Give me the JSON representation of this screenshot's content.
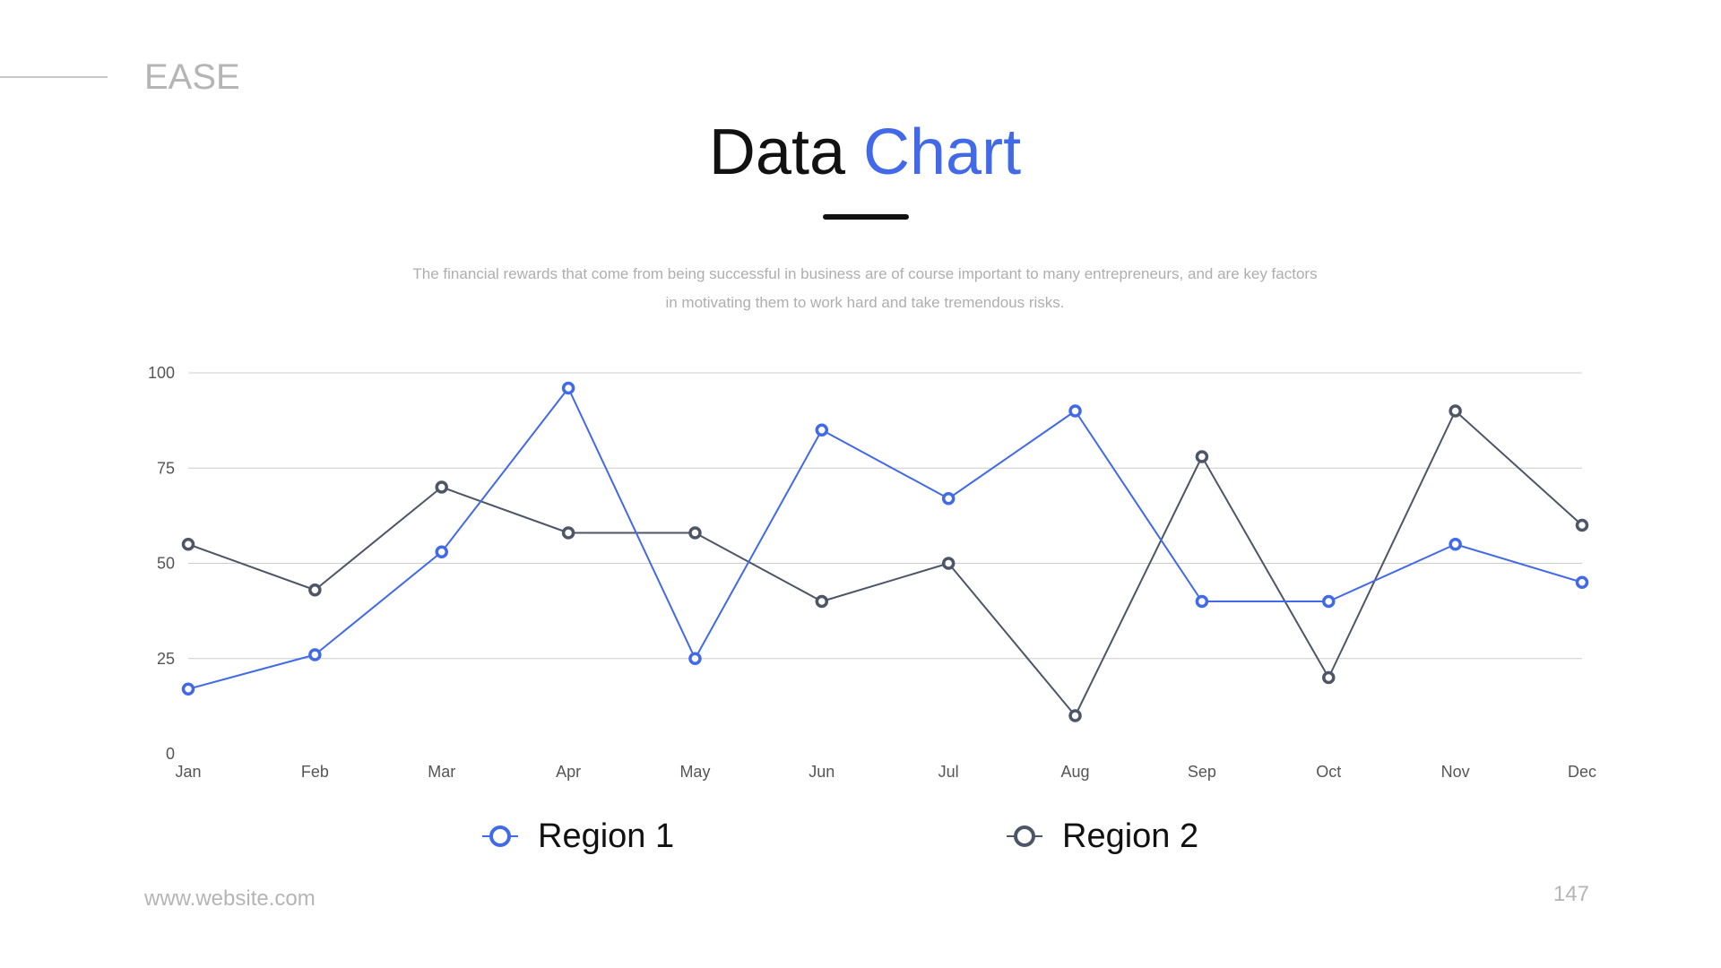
{
  "brand": "EASE",
  "title": {
    "part1": "Data",
    "part2": "Chart"
  },
  "description": {
    "line1": "The financial rewards that come from being successful in business are of course important to many entrepreneurs, and are key factors",
    "line2": "in motivating them to work hard and take tremendous risks."
  },
  "footer": {
    "url": "www.website.com",
    "page": "147"
  },
  "colors": {
    "accent": "#4169e8",
    "secondary": "#4d5566",
    "grid": "#cccccc",
    "tick": "#555555"
  },
  "chart_data": {
    "type": "line",
    "title": "",
    "xlabel": "",
    "ylabel": "",
    "categories": [
      "Jan",
      "Feb",
      "Mar",
      "Apr",
      "May",
      "Jun",
      "Jul",
      "Aug",
      "Sep",
      "Oct",
      "Nov",
      "Dec"
    ],
    "ylim": [
      0,
      100
    ],
    "yticks": [
      0,
      25,
      50,
      75,
      100
    ],
    "grid": true,
    "legend": "bottom",
    "series": [
      {
        "name": "Region 1",
        "color": "#4169e8",
        "values": [
          17,
          26,
          53,
          96,
          25,
          85,
          67,
          90,
          40,
          40,
          55,
          45
        ]
      },
      {
        "name": "Region 2",
        "color": "#4d5566",
        "values": [
          55,
          43,
          70,
          58,
          58,
          40,
          50,
          10,
          78,
          20,
          90,
          60
        ]
      }
    ]
  }
}
